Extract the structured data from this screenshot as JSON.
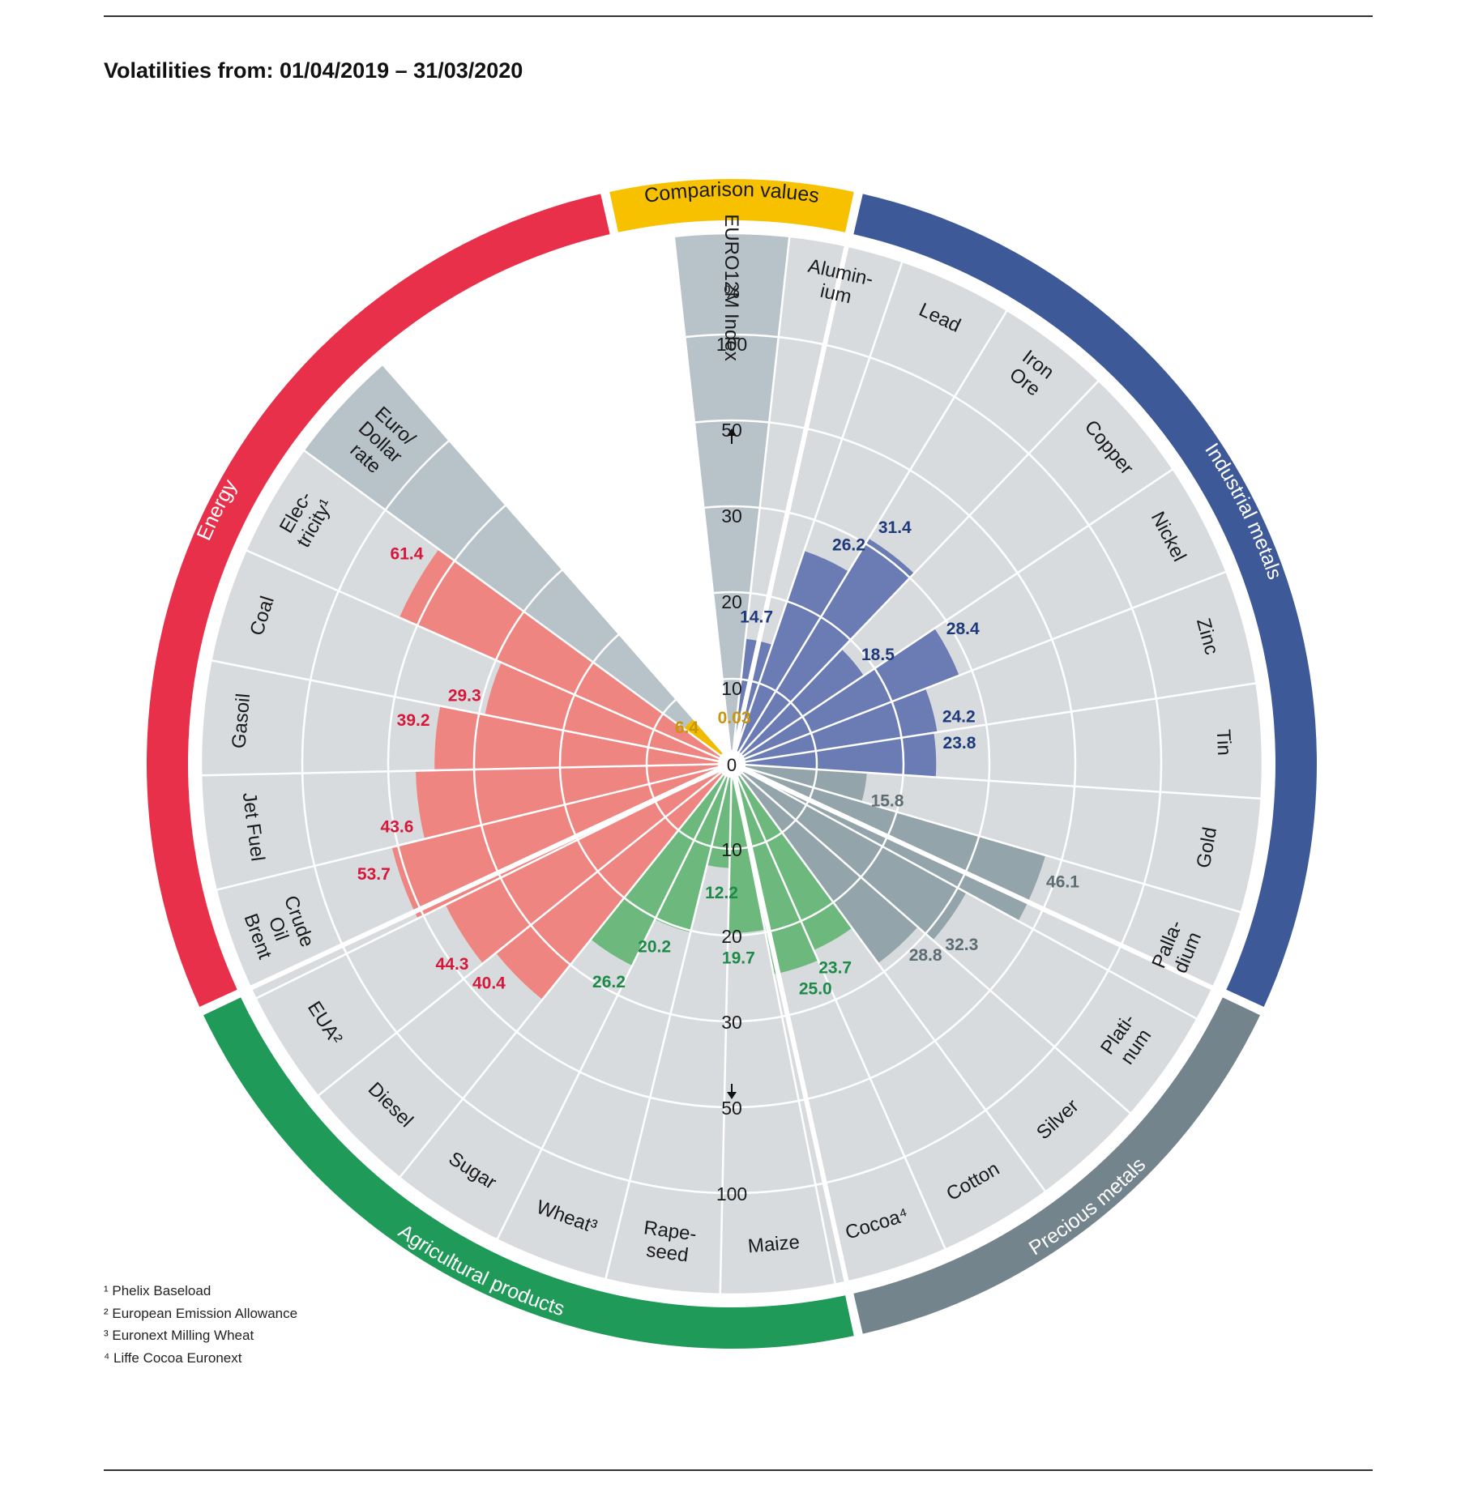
{
  "chart_data": {
    "type": "polar-bar",
    "title": "Volatilities from: 01/04/2019 – 31/03/2020",
    "unit": "%",
    "radial_ticks": [
      "0",
      "10",
      "20",
      "30",
      "50",
      "100"
    ],
    "colors": {
      "Energy": "#e8304a",
      "Energy_bar": "#ef8580",
      "Comparison values": "#f8c100",
      "Comparison values_bar": "#f1bc00",
      "Industrial metals": "#3d5998",
      "Industrial metals_bar": "#6b7cb5",
      "Precious metals": "#73848d",
      "Precious metals_bar": "#93a4aa",
      "Agricultural products": "#1f9a58",
      "Agricultural products_bar": "#6db87d",
      "sector_bg": "#d8dbde",
      "comparison_bg": "#b7c2c9"
    },
    "groups": [
      {
        "name": "Comparison values",
        "start_deg": -12.5,
        "end_deg": 12.5
      },
      {
        "name": "Industrial metals",
        "start_deg": 12.5,
        "end_deg": 115
      },
      {
        "name": "Precious metals",
        "start_deg": 115,
        "end_deg": 167.5
      },
      {
        "name": "Agricultural products",
        "start_deg": 167.5,
        "end_deg": 245
      },
      {
        "name": "Energy",
        "start_deg": 245,
        "end_deg": 347.5
      }
    ],
    "series": [
      {
        "group": "Comparison values",
        "label": "EURO12M Index",
        "value": 0.03,
        "value_label": "0.03"
      },
      {
        "group": "Industrial metals",
        "label": "Alumin-\nium",
        "value": 14.7,
        "value_label": "14.7"
      },
      {
        "group": "Industrial metals",
        "label": "Lead",
        "value": 26.2,
        "value_label": "26.2"
      },
      {
        "group": "Industrial metals",
        "label": "Iron\nOre",
        "value": 31.4,
        "value_label": "31.4"
      },
      {
        "group": "Industrial metals",
        "label": "Copper",
        "value": 18.5,
        "value_label": "18.5"
      },
      {
        "group": "Industrial metals",
        "label": "Nickel",
        "value": 28.4,
        "value_label": "28.4"
      },
      {
        "group": "Industrial metals",
        "label": "Zinc",
        "value": 24.2,
        "value_label": "24.2"
      },
      {
        "group": "Industrial metals",
        "label": "Tin",
        "value": 23.8,
        "value_label": "23.8"
      },
      {
        "group": "Precious metals",
        "label": "Gold",
        "value": 15.8,
        "value_label": "15.8"
      },
      {
        "group": "Precious metals",
        "label": "Palla-\ndium",
        "value": 46.1,
        "value_label": "46.1"
      },
      {
        "group": "Precious metals",
        "label": "Plati-\nnum",
        "value": 32.3,
        "value_label": "32.3"
      },
      {
        "group": "Precious metals",
        "label": "Silver",
        "value": 28.8,
        "value_label": "28.8"
      },
      {
        "group": "Agricultural products",
        "label": "Cotton",
        "value": 23.7,
        "value_label": "23.7"
      },
      {
        "group": "Agricultural products",
        "label": "Cocoa⁴",
        "value": 25.0,
        "value_label": "25.0"
      },
      {
        "group": "Agricultural products",
        "label": "Maize",
        "value": 19.7,
        "value_label": "19.7"
      },
      {
        "group": "Agricultural products",
        "label": "Rape-\nseed",
        "value": 12.2,
        "value_label": "12.2"
      },
      {
        "group": "Agricultural products",
        "label": "Wheat³",
        "value": 20.2,
        "value_label": "20.2"
      },
      {
        "group": "Agricultural products",
        "label": "Sugar",
        "value": 26.2,
        "value_label": "26.2"
      },
      {
        "group": "Energy",
        "label": "Diesel",
        "value": 40.4,
        "value_label": "40.4"
      },
      {
        "group": "Energy",
        "label": "EUA²",
        "value": 44.3,
        "value_label": "44.3"
      },
      {
        "group": "Energy",
        "label": "Crude\nOil\nBrent",
        "value": 53.7,
        "value_label": "53.7"
      },
      {
        "group": "Energy",
        "label": "Jet Fuel",
        "value": 43.6,
        "value_label": "43.6"
      },
      {
        "group": "Energy",
        "label": "Gasoil",
        "value": 39.2,
        "value_label": "39.2"
      },
      {
        "group": "Energy",
        "label": "Coal",
        "value": 29.3,
        "value_label": "29.3"
      },
      {
        "group": "Energy",
        "label": "Elec-\ntricity¹",
        "value": 61.4,
        "value_label": "61.4"
      },
      {
        "group": "Comparison values",
        "label": "Euro/\nDollar\nrate",
        "value": 6.4,
        "value_label": "6.4"
      }
    ]
  },
  "footnotes": [
    "¹ Phelix Baseload",
    "² European Emission Allowance",
    "³ Euronext Milling Wheat",
    "⁴ Liffe Cocoa Euronext"
  ]
}
